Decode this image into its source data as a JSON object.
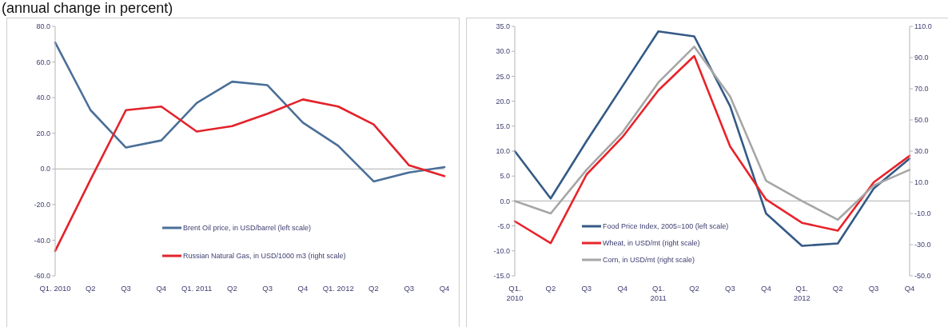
{
  "chart_data": [
    {
      "type": "line",
      "title": "(annual change in percent)",
      "categories": [
        "Q1. 2010",
        "Q2",
        "Q3",
        "Q4",
        "Q1. 2011",
        "Q2",
        "Q3",
        "Q4",
        "Q1. 2012",
        "Q2",
        "Q3",
        "Q4"
      ],
      "series": [
        {
          "name": "Brent Oil price, in USD/barrel (left scale)",
          "color": "#4a6f98",
          "values": [
            71,
            33,
            12,
            16,
            37,
            49,
            47,
            26,
            13,
            -7,
            -2,
            1
          ]
        },
        {
          "name": "Russian Natural Gas, in USD/1000 m3 (right scale)",
          "color": "#e3222b",
          "values": [
            -46,
            -6,
            33,
            35,
            21,
            24,
            31,
            39,
            35,
            25,
            2,
            -4
          ]
        }
      ],
      "ylim": [
        -60,
        80
      ],
      "yticks": [
        {
          "value": -60,
          "label": "-60.0"
        },
        {
          "value": -40,
          "label": "-40.0"
        },
        {
          "value": -20,
          "label": "-20.0"
        },
        {
          "value": 0,
          "label": "0.0"
        },
        {
          "value": 20,
          "label": "20.0"
        },
        {
          "value": 40,
          "label": "40.0"
        },
        {
          "value": 60,
          "label": "60.0"
        },
        {
          "value": 80,
          "label": "80.0"
        }
      ],
      "ref_lines": [
        {
          "axis": "y",
          "value": 0,
          "color": "#bfbfbf"
        }
      ],
      "legend": "bottom"
    },
    {
      "type": "line",
      "categories": [
        "Q1.\n2010",
        "Q2",
        "Q3",
        "Q4",
        "Q1.\n2011",
        "Q2",
        "Q3",
        "Q4",
        "Q1.\n2012",
        "Q2",
        "Q3",
        "Q4"
      ],
      "series": [
        {
          "name": "Food Price Index, 2005=100 (left scale)",
          "color": "#345a85",
          "values": [
            10,
            0.5,
            12,
            23,
            34,
            33,
            19,
            -2.5,
            -9,
            -8.5,
            2.5,
            8.5
          ]
        },
        {
          "name": "Wheat, in USD/mt (right scale)",
          "color": "#e8232b",
          "axis": "y2",
          "values": [
            -15,
            -29,
            15,
            39,
            69,
            91,
            33,
            -1,
            -16,
            -21,
            10,
            27
          ]
        },
        {
          "name": "Corn, in USD/mt (right scale)",
          "color": "#a6a6a6",
          "axis": "y2",
          "values": [
            -2,
            -10,
            18,
            42,
            74,
            97,
            65,
            11,
            -2,
            -14,
            8,
            18
          ]
        }
      ],
      "ylim": [
        -15,
        35
      ],
      "yticks": [
        {
          "value": -15,
          "label": "-15.0"
        },
        {
          "value": -10,
          "label": "-10.0"
        },
        {
          "value": -5,
          "label": "-5.0"
        },
        {
          "value": 0,
          "label": "0.0"
        },
        {
          "value": 5,
          "label": "5.0"
        },
        {
          "value": 10,
          "label": "10.0"
        },
        {
          "value": 15,
          "label": "15.0"
        },
        {
          "value": 20,
          "label": "20.0"
        },
        {
          "value": 25,
          "label": "25.0"
        },
        {
          "value": 30,
          "label": "30.0"
        },
        {
          "value": 35,
          "label": "35.0"
        }
      ],
      "y2lim": [
        -50,
        110
      ],
      "y2ticks": [
        {
          "value": -50,
          "label": "-50.0"
        },
        {
          "value": -30,
          "label": "-30.0"
        },
        {
          "value": -10,
          "label": "-10.0"
        },
        {
          "value": 10,
          "label": "10.0"
        },
        {
          "value": 30,
          "label": "30.0"
        },
        {
          "value": 50,
          "label": "50.0"
        },
        {
          "value": 70,
          "label": "70.0"
        },
        {
          "value": 90,
          "label": "90.0"
        },
        {
          "value": 110,
          "label": "110.0"
        }
      ],
      "ref_lines": [
        {
          "axis": "y",
          "value": 0,
          "color": "#bfbfbf"
        }
      ],
      "legend": "bottom"
    }
  ]
}
